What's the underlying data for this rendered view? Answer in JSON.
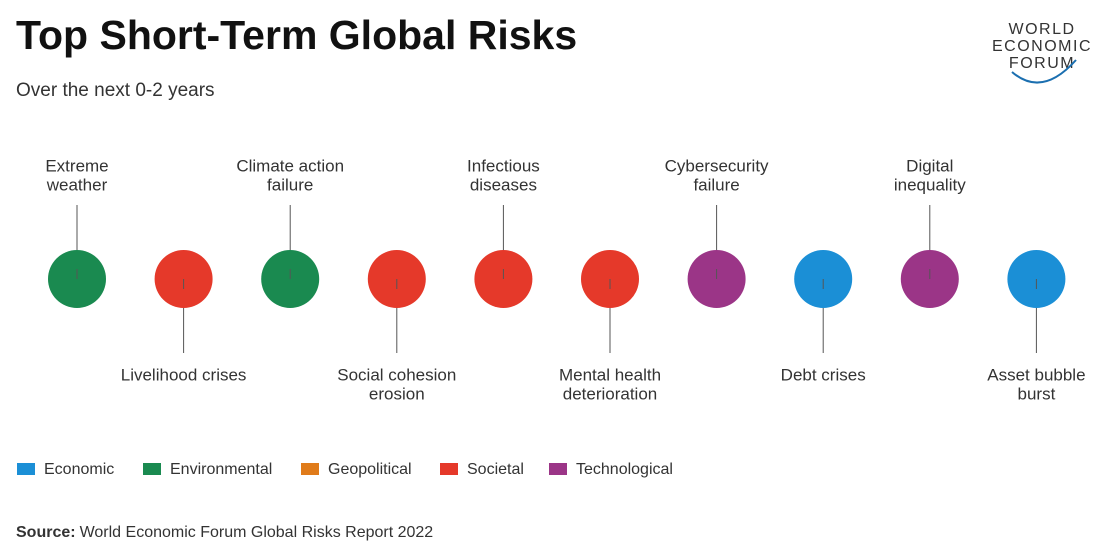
{
  "header": {
    "title": "Top Short-Term Global Risks",
    "subtitle": "Over the next 0-2 years",
    "logo": [
      "WORLD",
      "ECONOMIC",
      "FORUM"
    ]
  },
  "risks": [
    {
      "label": [
        "Extreme",
        "weather"
      ],
      "category": "Environmental"
    },
    {
      "label": [
        "Livelihood crises"
      ],
      "category": "Societal"
    },
    {
      "label": [
        "Climate action",
        "failure"
      ],
      "category": "Environmental"
    },
    {
      "label": [
        "Social cohesion",
        "erosion"
      ],
      "category": "Societal"
    },
    {
      "label": [
        "Infectious",
        "diseases"
      ],
      "category": "Societal"
    },
    {
      "label": [
        "Mental health",
        "deterioration"
      ],
      "category": "Societal"
    },
    {
      "label": [
        "Cybersecurity",
        "failure"
      ],
      "category": "Technological"
    },
    {
      "label": [
        "Debt crises"
      ],
      "category": "Economic"
    },
    {
      "label": [
        "Digital",
        "inequality"
      ],
      "category": "Technological"
    },
    {
      "label": [
        "Asset bubble",
        "burst"
      ],
      "category": "Economic"
    }
  ],
  "legend": [
    {
      "name": "Economic",
      "color": "#1b8fd6"
    },
    {
      "name": "Environmental",
      "color": "#1a8a50"
    },
    {
      "name": "Geopolitical",
      "color": "#e07b1a"
    },
    {
      "name": "Societal",
      "color": "#e5392a"
    },
    {
      "name": "Technological",
      "color": "#9b3587"
    }
  ],
  "source": {
    "label": "Source:",
    "text": "World Economic Forum Global Risks Report 2022"
  }
}
